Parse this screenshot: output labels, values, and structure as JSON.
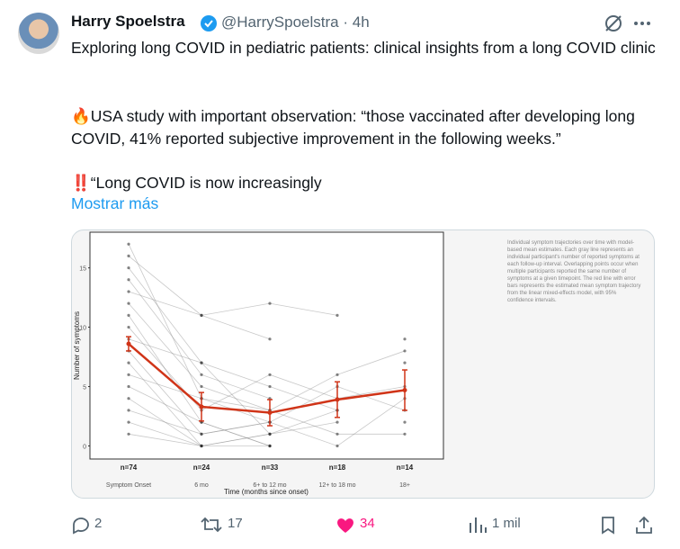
{
  "tweet": {
    "author": "Harry Spoelstra",
    "meta": "@HarrySpoelstra · 4h",
    "paragraphs": [
      "Exploring long COVID in pediatric patients: clinical insights from a long COVID clinic",
      "🔥USA study with important observation: “those vaccinated after developing long COVID, 41% reported subjective improvement in the following weeks.”",
      "‼️“Long COVID is now increasingly"
    ],
    "show_more": "Mostrar más",
    "caption": "Individual symptom trajectories over time with model-based mean estimates. Each gray line represents an individual participant's number of reported symptoms at each follow-up interval. Overlapping points occur when multiple participants reported the same number of symptoms at a given timepoint. The red line with error bars represents the estimated mean symptom trajectory from the linear mixed-effects model, with 95% confidence intervals.",
    "actions": {
      "replies": "2",
      "reposts": "17",
      "likes": "34",
      "views": "1 mil"
    }
  },
  "chart_data": {
    "type": "line",
    "y_label": "Number of symptoms",
    "x_label": "Time (months since onset)",
    "categories": [
      "Symptom Onset",
      "6 mo",
      "6+ to 12 mo",
      "12+ to 18 mo",
      "18+"
    ],
    "counts": [
      "n=74",
      "n=24",
      "n=33",
      "n=18",
      "n=14"
    ],
    "ylim": [
      -1.1,
      18
    ],
    "yticks": [
      0,
      5,
      10,
      15
    ],
    "series": [
      {
        "color": "#d03418",
        "values": [
          8.6,
          3.3,
          2.8,
          3.9,
          4.7
        ],
        "errors": [
          0.6,
          1.2,
          1.1,
          1.5,
          1.7
        ]
      },
      {
        "color": "#888888",
        "values": [
          17,
          4,
          2,
          null,
          null
        ]
      },
      {
        "color": "#888888",
        "values": [
          16,
          11,
          9,
          null,
          9
        ]
      },
      {
        "color": "#888888",
        "values": [
          15,
          7,
          5,
          3,
          null
        ]
      },
      {
        "color": "#888888",
        "values": [
          14,
          6,
          4,
          null,
          2
        ]
      },
      {
        "color": "#888888",
        "values": [
          13,
          11,
          12,
          11,
          null
        ]
      },
      {
        "color": "#888888",
        "values": [
          12,
          5,
          3,
          6,
          8
        ]
      },
      {
        "color": "#888888",
        "values": [
          11,
          2,
          0,
          null,
          null
        ]
      },
      {
        "color": "#888888",
        "values": [
          10,
          3,
          6,
          4,
          5
        ]
      },
      {
        "color": "#888888",
        "values": [
          9,
          7,
          1,
          2,
          null
        ]
      },
      {
        "color": "#888888",
        "values": [
          8,
          1,
          2,
          5,
          3
        ]
      },
      {
        "color": "#888888",
        "values": [
          7,
          0,
          1,
          null,
          null
        ]
      },
      {
        "color": "#888888",
        "values": [
          6,
          4,
          3,
          1,
          1
        ]
      },
      {
        "color": "#888888",
        "values": [
          5,
          2,
          0,
          null,
          7
        ]
      },
      {
        "color": "#888888",
        "values": [
          4,
          0,
          1,
          3,
          null
        ]
      },
      {
        "color": "#888888",
        "values": [
          3,
          1,
          2,
          0,
          4
        ]
      },
      {
        "color": "#888888",
        "values": [
          2,
          0,
          null,
          null,
          null
        ]
      },
      {
        "color": "#888888",
        "values": [
          1,
          0,
          0,
          null,
          null
        ]
      }
    ]
  }
}
